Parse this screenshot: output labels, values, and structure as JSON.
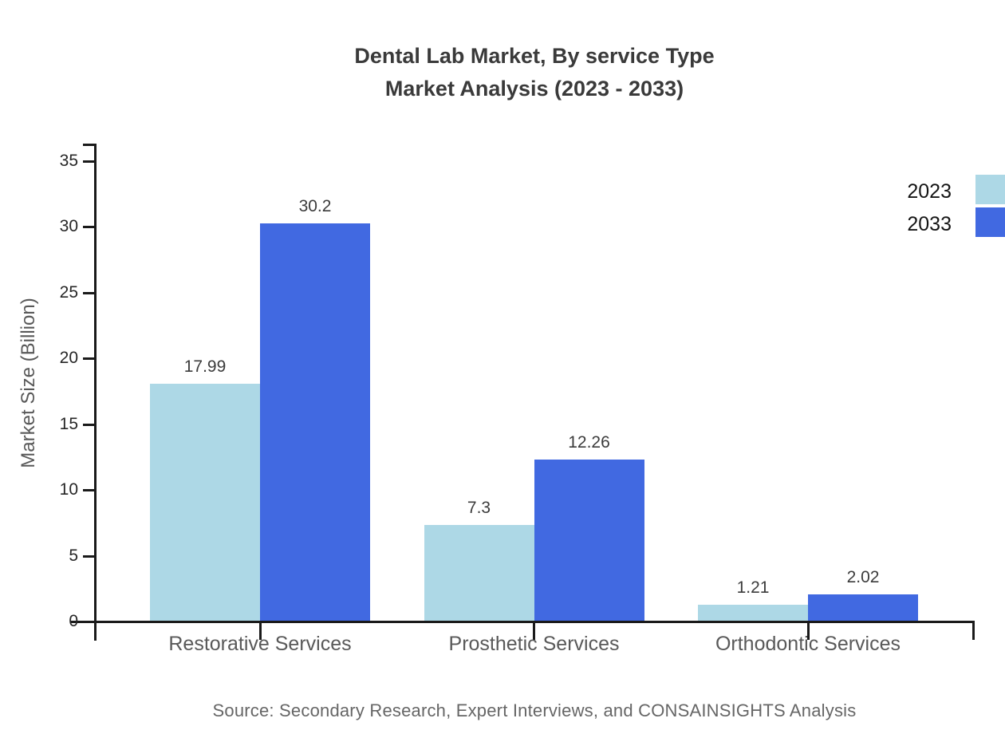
{
  "title": {
    "line1": "Dental Lab Market, By service Type",
    "line2": "Market Analysis (2023 - 2033)"
  },
  "source": "Source: Secondary Research, Expert Interviews, and CONSAINSIGHTS Analysis",
  "legend": {
    "position": "upper right",
    "items": [
      {
        "label": "2023",
        "color": "#ADD8E6"
      },
      {
        "label": "2033",
        "color": "#4169E1"
      }
    ]
  },
  "chart_data": {
    "type": "bar",
    "title": "Dental Lab Market, By service Type Market Analysis (2023 - 2033)",
    "categories": [
      "Restorative Services",
      "Prosthetic Services",
      "Orthodontic Services"
    ],
    "series": [
      {
        "name": "2023",
        "color": "#ADD8E6",
        "values": [
          17.99,
          7.3,
          1.21
        ]
      },
      {
        "name": "2033",
        "color": "#4169E1",
        "values": [
          30.2,
          12.26,
          2.02
        ]
      }
    ],
    "xlabel": "",
    "ylabel": "Market Size (Billion)",
    "ylim": [
      0,
      36.2
    ],
    "yticks": [
      0,
      5,
      10,
      15,
      20,
      25,
      30,
      35
    ],
    "grid": false,
    "value_labels": true,
    "legend_position": "upper right"
  },
  "colors": {
    "series_2023": "#ADD8E6",
    "series_2033": "#4169E1",
    "axis": "#1a1a1a",
    "title_text": "#3a3a3a",
    "muted_text": "#595959",
    "source_text": "#666666"
  }
}
